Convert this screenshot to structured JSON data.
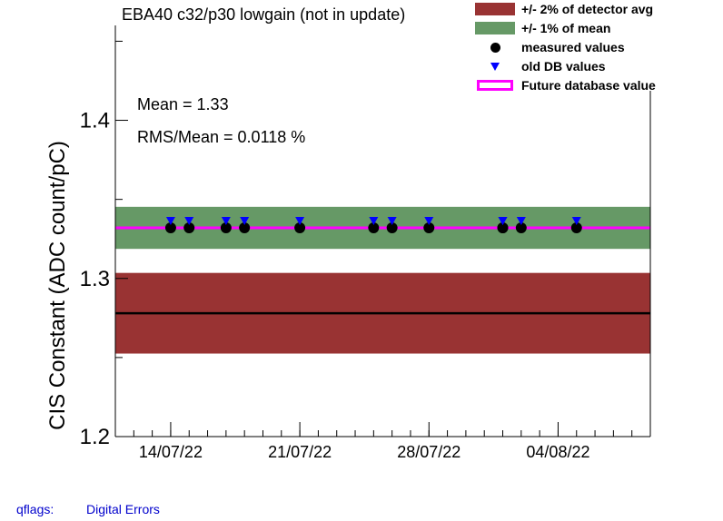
{
  "title": "EBA40 c32/p30 lowgain (not in update)",
  "stats": {
    "mean": "Mean = 1.33",
    "rms": "RMS/Mean = 0.0118 %"
  },
  "legend": [
    {
      "key": "detector",
      "label": "+/- 2% of detector avg",
      "color": "#993333"
    },
    {
      "key": "mean",
      "label": "+/- 1% of mean",
      "color": "#669966"
    },
    {
      "key": "measured",
      "label": "measured values",
      "color": "#000000"
    },
    {
      "key": "olddb",
      "label": "old DB values",
      "color": "#0000ff"
    },
    {
      "key": "future",
      "label": "Future database value",
      "color": "#ff00ff"
    }
  ],
  "footer": {
    "label": "qflags:",
    "value": "Digital Errors"
  },
  "chart_data": {
    "type": "scatter",
    "ylabel": "CIS Constant (ADC count/pC)",
    "ylim": [
      1.2,
      1.46
    ],
    "xlim": [
      "2022-07-11",
      "2022-08-09"
    ],
    "yticks": [
      1.2,
      1.3,
      1.4
    ],
    "xticks": [
      "14/07/22",
      "21/07/22",
      "28/07/22",
      "04/08/22"
    ],
    "xtick_dates": [
      "2022-07-14",
      "2022-07-21",
      "2022-07-28",
      "2022-08-04"
    ],
    "detector_avg": 1.278,
    "detector_band": [
      1.2525,
      1.3035
    ],
    "mean_value": 1.332,
    "mean_band": [
      1.3187,
      1.3453
    ],
    "future_db_value": 1.332,
    "measured": {
      "x": [
        "2022-07-14",
        "2022-07-15",
        "2022-07-17",
        "2022-07-18",
        "2022-07-21",
        "2022-07-25",
        "2022-07-26",
        "2022-07-28",
        "2022-08-01",
        "2022-08-01",
        "2022-08-02",
        "2022-08-05"
      ],
      "y": [
        1.332,
        1.332,
        1.332,
        1.332,
        1.332,
        1.332,
        1.332,
        1.332,
        1.332,
        1.332,
        1.332,
        1.332
      ]
    },
    "old_db": {
      "x": [
        "2022-07-14",
        "2022-07-15",
        "2022-07-17",
        "2022-07-18",
        "2022-07-21",
        "2022-07-25",
        "2022-07-26",
        "2022-07-28",
        "2022-08-01",
        "2022-08-01",
        "2022-08-02",
        "2022-08-05"
      ],
      "y": [
        1.336,
        1.336,
        1.336,
        1.336,
        1.336,
        1.336,
        1.336,
        1.336,
        1.336,
        1.336,
        1.336,
        1.336
      ]
    }
  }
}
